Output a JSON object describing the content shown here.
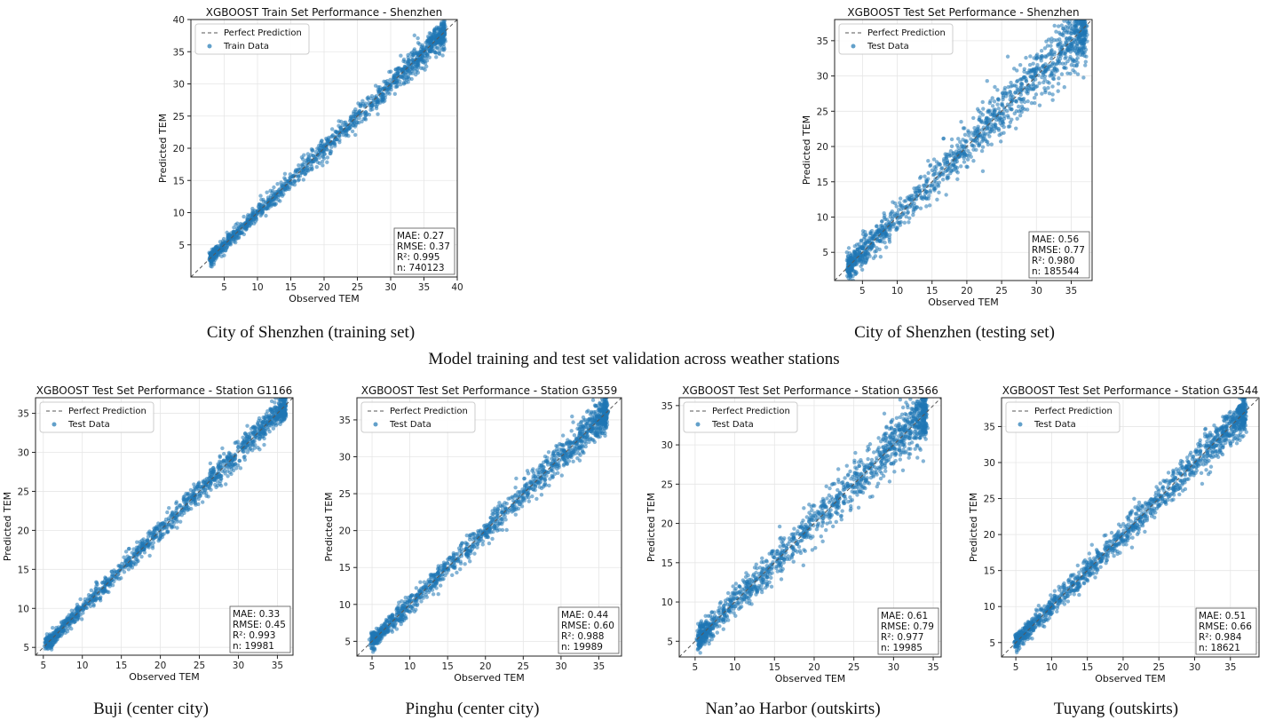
{
  "section_title": "Model training and test set validation across weather stations",
  "colors": {
    "points": "#1f77b4",
    "diagonal": "#555555",
    "axes": "#222222",
    "grid": "#e6e6e6"
  },
  "chart_data": [
    {
      "id": "sz-train",
      "type": "scatter",
      "title": "XGBOOST Train Set Performance - Shenzhen",
      "xlabel": "Observed TEM",
      "ylabel": "Predicted TEM",
      "xlim": [
        0,
        40
      ],
      "ylim": [
        0,
        40
      ],
      "xticks": [
        5,
        10,
        15,
        20,
        25,
        30,
        35,
        40
      ],
      "yticks": [
        5,
        10,
        15,
        20,
        25,
        30,
        35,
        40
      ],
      "grid": true,
      "legend_position": "top-left",
      "series": [
        {
          "name": "Perfect Prediction",
          "kind": "line",
          "x": [
            0,
            40
          ],
          "y": [
            0,
            40
          ]
        },
        {
          "name": "Train Data",
          "kind": "scatter",
          "x_range": [
            3,
            38
          ],
          "spread": 0.8
        }
      ],
      "stats": [
        "MAE: 0.27",
        "RMSE: 0.37",
        "R²: 0.995",
        "n: 740123"
      ],
      "caption": "City of Shenzhen (training set)"
    },
    {
      "id": "sz-test",
      "type": "scatter",
      "title": "XGBOOST Test Set Performance - Shenzhen",
      "xlabel": "Observed TEM",
      "ylabel": "Predicted TEM",
      "xlim": [
        1,
        38
      ],
      "ylim": [
        1,
        38
      ],
      "xticks": [
        5,
        10,
        15,
        20,
        25,
        30,
        35
      ],
      "yticks": [
        5,
        10,
        15,
        20,
        25,
        30,
        35
      ],
      "grid": true,
      "legend_position": "top-left",
      "series": [
        {
          "name": "Perfect Prediction",
          "kind": "line",
          "x": [
            1,
            38
          ],
          "y": [
            1,
            38
          ]
        },
        {
          "name": "Test Data",
          "kind": "scatter",
          "x_range": [
            3,
            37
          ],
          "spread": 1.6
        }
      ],
      "stats": [
        "MAE: 0.56",
        "RMSE: 0.77",
        "R²: 0.980",
        "n: 185544"
      ],
      "caption": "City of Shenzhen (testing set)"
    },
    {
      "id": "g1166",
      "type": "scatter",
      "title": "XGBOOST Test Set Performance - Station G1166",
      "xlabel": "Observed TEM",
      "ylabel": "Predicted TEM",
      "xlim": [
        4,
        37
      ],
      "ylim": [
        4,
        37
      ],
      "xticks": [
        5,
        10,
        15,
        20,
        25,
        30,
        35
      ],
      "yticks": [
        5,
        10,
        15,
        20,
        25,
        30,
        35
      ],
      "grid": true,
      "legend_position": "top-left",
      "series": [
        {
          "name": "Perfect Prediction",
          "kind": "line",
          "x": [
            4,
            37
          ],
          "y": [
            4,
            37
          ]
        },
        {
          "name": "Test Data",
          "kind": "scatter",
          "x_range": [
            5.5,
            36
          ],
          "spread": 0.7
        }
      ],
      "stats": [
        "MAE: 0.33",
        "RMSE: 0.45",
        "R²: 0.993",
        "n: 19981"
      ],
      "caption": "Buji (center city)"
    },
    {
      "id": "g3559",
      "type": "scatter",
      "title": "XGBOOST Test Set Performance - Station G3559",
      "xlabel": "Observed TEM",
      "ylabel": "Predicted TEM",
      "xlim": [
        3,
        38
      ],
      "ylim": [
        3,
        38
      ],
      "xticks": [
        5,
        10,
        15,
        20,
        25,
        30,
        35
      ],
      "yticks": [
        5,
        10,
        15,
        20,
        25,
        30,
        35
      ],
      "grid": true,
      "legend_position": "top-left",
      "series": [
        {
          "name": "Perfect Prediction",
          "kind": "line",
          "x": [
            3,
            38
          ],
          "y": [
            3,
            38
          ]
        },
        {
          "name": "Test Data",
          "kind": "scatter",
          "x_range": [
            5,
            36
          ],
          "spread": 0.9
        }
      ],
      "stats": [
        "MAE: 0.44",
        "RMSE: 0.60",
        "R²: 0.988",
        "n: 19989"
      ],
      "caption": "Pinghu (center city)"
    },
    {
      "id": "g3566",
      "type": "scatter",
      "title": "XGBOOST Test Set Performance - Station G3566",
      "xlabel": "Observed TEM",
      "ylabel": "Predicted TEM",
      "xlim": [
        3,
        36
      ],
      "ylim": [
        3,
        36
      ],
      "xticks": [
        5,
        10,
        15,
        20,
        25,
        30,
        35
      ],
      "yticks": [
        5,
        10,
        15,
        20,
        25,
        30,
        35
      ],
      "grid": true,
      "legend_position": "top-left",
      "series": [
        {
          "name": "Perfect Prediction",
          "kind": "line",
          "x": [
            3,
            36
          ],
          "y": [
            3,
            36
          ]
        },
        {
          "name": "Test Data",
          "kind": "scatter",
          "x_range": [
            5.5,
            34
          ],
          "spread": 1.3
        }
      ],
      "stats": [
        "MAE: 0.61",
        "RMSE: 0.79",
        "R²: 0.977",
        "n: 19985"
      ],
      "caption": "Nan’ao Harbor (outskirts)"
    },
    {
      "id": "g3544",
      "type": "scatter",
      "title": "XGBOOST Test Set Performance - Station G3544",
      "xlabel": "Observed TEM",
      "ylabel": "Predicted TEM",
      "xlim": [
        3,
        39
      ],
      "ylim": [
        3,
        39
      ],
      "xticks": [
        5,
        10,
        15,
        20,
        25,
        30,
        35
      ],
      "yticks": [
        5,
        10,
        15,
        20,
        25,
        30,
        35
      ],
      "grid": true,
      "legend_position": "top-left",
      "series": [
        {
          "name": "Perfect Prediction",
          "kind": "line",
          "x": [
            3,
            39
          ],
          "y": [
            3,
            39
          ]
        },
        {
          "name": "Test Data",
          "kind": "scatter",
          "x_range": [
            5,
            37
          ],
          "spread": 1.0
        }
      ],
      "stats": [
        "MAE: 0.51",
        "RMSE: 0.66",
        "R²: 0.984",
        "n: 18621"
      ],
      "caption": "Tuyang (outskirts)"
    }
  ]
}
